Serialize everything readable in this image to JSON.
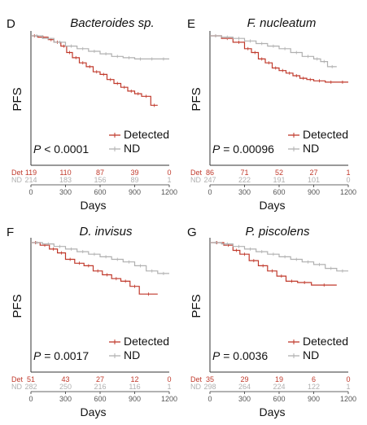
{
  "colors": {
    "detected": "#c0392b",
    "nd": "#b0b0b0",
    "axis": "#333333"
  },
  "chart_data": [
    {
      "type": "line",
      "panel": "D",
      "title": "Bacteroides sp.",
      "xlabel": "Days",
      "ylabel": "PFS",
      "xticks": [
        0,
        300,
        600,
        900,
        1200
      ],
      "xlim": [
        0,
        1200
      ],
      "ylim": [
        0,
        1
      ],
      "p_label": "P",
      "p_rest": " < 0.0001",
      "legend": [
        "Detected",
        "ND"
      ],
      "series": [
        {
          "name": "Detected",
          "x": [
            0,
            60,
            150,
            200,
            260,
            310,
            360,
            420,
            480,
            540,
            600,
            660,
            720,
            780,
            840,
            900,
            960,
            1040,
            1100
          ],
          "y": [
            1.0,
            0.99,
            0.97,
            0.95,
            0.92,
            0.87,
            0.83,
            0.79,
            0.76,
            0.72,
            0.7,
            0.66,
            0.63,
            0.6,
            0.57,
            0.55,
            0.53,
            0.46,
            0.46
          ]
        },
        {
          "name": "ND",
          "x": [
            0,
            100,
            200,
            300,
            400,
            500,
            600,
            700,
            800,
            900,
            1000,
            1100,
            1200
          ],
          "y": [
            1.0,
            0.98,
            0.95,
            0.92,
            0.9,
            0.88,
            0.86,
            0.84,
            0.83,
            0.82,
            0.82,
            0.82,
            0.82
          ]
        }
      ],
      "risk_table": {
        "Det": [
          "119",
          "110",
          "87",
          "39",
          "0"
        ],
        "ND": [
          "214",
          "183",
          "156",
          "89",
          "1"
        ]
      }
    },
    {
      "type": "line",
      "panel": "E",
      "title": "F. nucleatum",
      "xlabel": "Days",
      "ylabel": "PFS",
      "xticks": [
        0,
        300,
        600,
        900,
        1200
      ],
      "xlim": [
        0,
        1200
      ],
      "ylim": [
        0,
        1
      ],
      "p_label": "P",
      "p_rest": " = 0.00096",
      "legend": [
        "Detected",
        "ND"
      ],
      "series": [
        {
          "name": "Detected",
          "x": [
            0,
            100,
            200,
            300,
            360,
            420,
            480,
            540,
            600,
            660,
            720,
            780,
            840,
            900,
            1000,
            1100,
            1200
          ],
          "y": [
            1.0,
            0.98,
            0.95,
            0.9,
            0.87,
            0.82,
            0.79,
            0.75,
            0.73,
            0.71,
            0.69,
            0.67,
            0.66,
            0.65,
            0.64,
            0.64,
            0.64
          ]
        },
        {
          "name": "ND",
          "x": [
            0,
            100,
            200,
            300,
            400,
            500,
            600,
            700,
            800,
            900,
            960,
            1020,
            1100
          ],
          "y": [
            1.0,
            0.99,
            0.98,
            0.96,
            0.94,
            0.92,
            0.9,
            0.87,
            0.84,
            0.82,
            0.8,
            0.76,
            0.76
          ]
        }
      ],
      "risk_table": {
        "Det": [
          "86",
          "71",
          "52",
          "27",
          "1"
        ],
        "ND": [
          "247",
          "222",
          "191",
          "101",
          "0"
        ]
      }
    },
    {
      "type": "line",
      "panel": "F",
      "title": "D. invisus",
      "xlabel": "Days",
      "ylabel": "PFS",
      "xticks": [
        0,
        300,
        600,
        900,
        1200
      ],
      "xlim": [
        0,
        1200
      ],
      "ylim": [
        0,
        1
      ],
      "p_label": "P",
      "p_rest": " = 0.0017",
      "legend": [
        "Detected",
        "ND"
      ],
      "series": [
        {
          "name": "Detected",
          "x": [
            0,
            80,
            160,
            230,
            300,
            380,
            460,
            540,
            620,
            700,
            780,
            860,
            940,
            1100
          ],
          "y": [
            1.0,
            0.98,
            0.95,
            0.92,
            0.87,
            0.84,
            0.82,
            0.78,
            0.75,
            0.72,
            0.7,
            0.66,
            0.6,
            0.6
          ]
        },
        {
          "name": "ND",
          "x": [
            0,
            100,
            200,
            300,
            400,
            500,
            600,
            700,
            800,
            900,
            1000,
            1100,
            1200
          ],
          "y": [
            1.0,
            0.99,
            0.97,
            0.95,
            0.93,
            0.91,
            0.89,
            0.87,
            0.85,
            0.82,
            0.78,
            0.76,
            0.76
          ]
        }
      ],
      "risk_table": {
        "Det": [
          "51",
          "43",
          "27",
          "12",
          "0"
        ],
        "ND": [
          "282",
          "250",
          "216",
          "116",
          "1"
        ]
      }
    },
    {
      "type": "line",
      "panel": "G",
      "title": "P. piscolens",
      "xlabel": "Days",
      "ylabel": "PFS",
      "xticks": [
        0,
        300,
        600,
        900,
        1200
      ],
      "xlim": [
        0,
        1200
      ],
      "ylim": [
        0,
        1
      ],
      "p_label": "P",
      "p_rest": " = 0.0036",
      "legend": [
        "Detected",
        "ND"
      ],
      "series": [
        {
          "name": "Detected",
          "x": [
            0,
            120,
            200,
            260,
            340,
            420,
            500,
            580,
            660,
            760,
            880,
            1100
          ],
          "y": [
            1.0,
            0.98,
            0.94,
            0.91,
            0.86,
            0.82,
            0.78,
            0.74,
            0.7,
            0.69,
            0.67,
            0.67
          ]
        },
        {
          "name": "ND",
          "x": [
            0,
            100,
            200,
            300,
            400,
            500,
            600,
            700,
            800,
            900,
            1000,
            1100,
            1200
          ],
          "y": [
            1.0,
            0.99,
            0.97,
            0.95,
            0.93,
            0.91,
            0.89,
            0.87,
            0.85,
            0.83,
            0.8,
            0.78,
            0.78
          ]
        }
      ],
      "risk_table": {
        "Det": [
          "35",
          "29",
          "19",
          "6",
          "0"
        ],
        "ND": [
          "298",
          "264",
          "224",
          "122",
          "1"
        ]
      }
    }
  ]
}
